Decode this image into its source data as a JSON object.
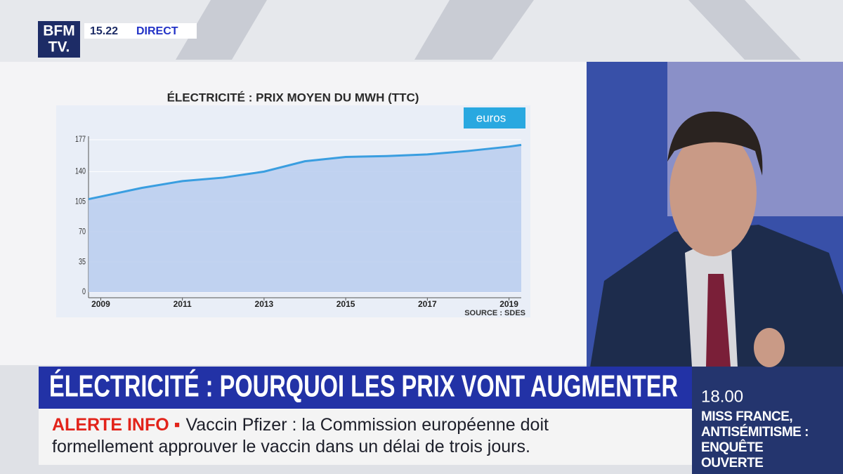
{
  "header": {
    "logo_top": "BFM",
    "logo_bottom": "TV.",
    "time": "15.22",
    "live": "DIRECT"
  },
  "chart_data": {
    "type": "area",
    "title": "ÉLECTRICITÉ : PRIX MOYEN DU MWH (TTC)",
    "unit": "euros",
    "source": "SOURCE : SDES",
    "x": [
      2008.7,
      2009,
      2010,
      2011,
      2012,
      2013,
      2014,
      2015,
      2016,
      2017,
      2018,
      2019,
      2019.3
    ],
    "values": [
      108,
      111,
      121,
      129,
      133,
      140,
      152,
      157,
      158,
      160,
      164,
      169,
      171
    ],
    "color": "#3a9ee0",
    "fill": "#b9cdee",
    "xlim": [
      2008.7,
      2019.3
    ],
    "xticks": [
      2009,
      2011,
      2013,
      2015,
      2017,
      2019
    ],
    "ylim": [
      0,
      177
    ],
    "yticks": [
      0,
      35,
      70,
      105,
      140,
      177
    ],
    "grid": true
  },
  "headline": "ÉLECTRICITÉ : POURQUOI LES PRIX VONT AUGMENTER",
  "ticker": {
    "label": "ALERTE INFO ▪",
    "text": "Vaccin Pfizer : la Commission européenne doit formellement approuver le vaccin dans un délai de trois jours."
  },
  "next": {
    "time": "18.00",
    "title": "MISS FRANCE, ANTISÉMITISME : ENQUÊTE OUVERTE"
  }
}
